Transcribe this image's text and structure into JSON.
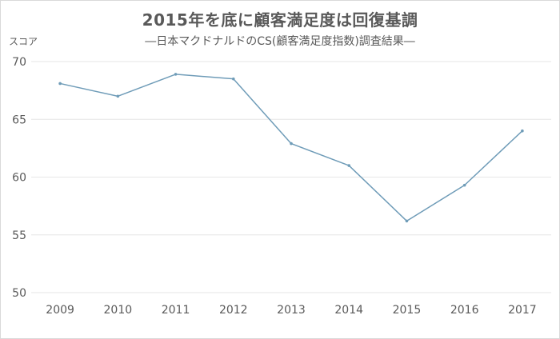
{
  "chart_data": {
    "type": "line",
    "title": "2015年を底に顧客満足度は回復基調",
    "subtitle": "―日本マクドナルドのCS(顧客満足度指数)調査結果―",
    "ylabel": "スコア",
    "xlabel": "",
    "categories": [
      "2009",
      "2010",
      "2011",
      "2012",
      "2013",
      "2014",
      "2015",
      "2016",
      "2017"
    ],
    "series": [
      {
        "values": [
          68.1,
          67.0,
          68.9,
          68.5,
          62.9,
          61.0,
          56.2,
          59.3,
          64.0
        ]
      }
    ],
    "ylim": [
      50,
      70
    ],
    "yticks": [
      50,
      55,
      60,
      65,
      70
    ],
    "grid": true,
    "colors": {
      "line": "#6f9cb8",
      "grid": "#e6e6e6",
      "text": "#595959"
    }
  }
}
